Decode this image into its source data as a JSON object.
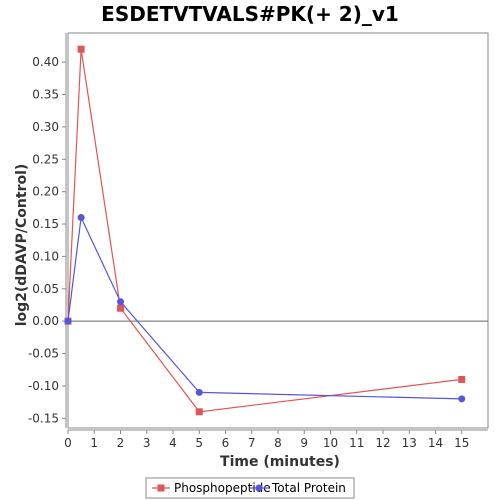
{
  "chart_data": {
    "type": "line",
    "title": "ESDETVTVALS#PK(+ 2)_v1",
    "xlabel": "Time (minutes)",
    "ylabel": "log2(dDAVP/Control)",
    "xlim": [
      0,
      16
    ],
    "ylim": [
      -0.165,
      0.445
    ],
    "x_ticks": [
      0,
      1,
      2,
      3,
      4,
      5,
      6,
      7,
      8,
      9,
      10,
      11,
      12,
      13,
      14,
      15
    ],
    "y_ticks": [
      -0.15,
      -0.1,
      -0.05,
      0.0,
      0.05,
      0.1,
      0.15,
      0.2,
      0.25,
      0.3,
      0.35,
      0.4
    ],
    "y_tick_labels": [
      "-0.15",
      "-0.10",
      "-0.05",
      "0.00",
      "0.05",
      "0.10",
      "0.15",
      "0.20",
      "0.25",
      "0.30",
      "0.35",
      "0.40"
    ],
    "grid": false,
    "legend_position": "bottom",
    "series": [
      {
        "name": "Phosphopeptide",
        "color": "#e05555",
        "marker": "square",
        "x": [
          0,
          0.5,
          2,
          5,
          15
        ],
        "values": [
          0.0,
          0.42,
          0.02,
          -0.14,
          -0.09
        ]
      },
      {
        "name": "Total Protein",
        "color": "#5555e0",
        "marker": "circle",
        "x": [
          0,
          0.5,
          2,
          5,
          15
        ],
        "values": [
          0.0,
          0.16,
          0.03,
          -0.11,
          -0.12
        ]
      }
    ]
  }
}
